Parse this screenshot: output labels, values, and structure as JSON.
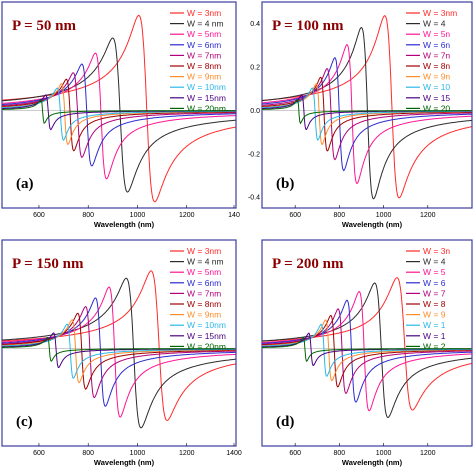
{
  "colors": {
    "frame": "#3c3ca0",
    "series": [
      "#ff2a2a",
      "#2b2b2b",
      "#ff1493",
      "#2a2ad0",
      "#b0007a",
      "#a00000",
      "#ff8c2a",
      "#2ab8e8",
      "#4b0082",
      "#006400",
      "#32cd32"
    ]
  },
  "chart_data": [
    {
      "type": "line",
      "title": "P = 50 nm",
      "panel_label": "(a)",
      "xlabel": "Wavelength (nm)",
      "xlim": [
        450,
        1400
      ],
      "ylim": [
        -0.45,
        0.5
      ],
      "x_ticks": [
        "600",
        "800",
        "1000",
        "1200",
        "140"
      ],
      "y_ticks": [],
      "legend_entries": [
        "W = 3nm",
        "W = 4 nm",
        "W = 5nm",
        "W = 6nm",
        "W = 7nm",
        "W = 8nm",
        "W = 9nm",
        "W = 10nm",
        "W = 15nm",
        "W = 20nm"
      ],
      "series": [
        {
          "name": "W = 3nm",
          "peak_x": 1005,
          "peak_y": 0.44,
          "trough_x": 1070,
          "trough_y": -0.42
        },
        {
          "name": "W = 4 nm",
          "peak_x": 900,
          "peak_y": 0.33,
          "trough_x": 960,
          "trough_y": -0.38
        },
        {
          "name": "W = 5nm",
          "peak_x": 830,
          "peak_y": 0.26,
          "trough_x": 875,
          "trough_y": -0.32
        },
        {
          "name": "W = 6nm",
          "peak_x": 775,
          "peak_y": 0.21,
          "trough_x": 815,
          "trough_y": -0.26
        },
        {
          "name": "W = 7nm",
          "peak_x": 740,
          "peak_y": 0.17,
          "trough_x": 775,
          "trough_y": -0.22
        },
        {
          "name": "W = 8nm",
          "peak_x": 712,
          "peak_y": 0.14,
          "trough_x": 742,
          "trough_y": -0.19
        },
        {
          "name": "W = 9nm",
          "peak_x": 692,
          "peak_y": 0.12,
          "trough_x": 718,
          "trough_y": -0.16
        },
        {
          "name": "W = 10nm",
          "peak_x": 675,
          "peak_y": 0.1,
          "trough_x": 700,
          "trough_y": -0.14
        },
        {
          "name": "W = 15nm",
          "peak_x": 628,
          "peak_y": 0.07,
          "trough_x": 648,
          "trough_y": -0.09
        },
        {
          "name": "W = 20nm",
          "peak_x": 608,
          "peak_y": 0.05,
          "trough_x": 622,
          "trough_y": -0.06
        }
      ]
    },
    {
      "type": "line",
      "title": "P = 100 nm",
      "panel_label": "(b)",
      "xlabel": "Wavelength (nm)",
      "xlim": [
        450,
        1400
      ],
      "ylim": [
        -0.45,
        0.5
      ],
      "x_ticks": [
        "600",
        "800",
        "1000",
        "1200"
      ],
      "y_ticks": [
        "0.4",
        "0.2",
        "0.0",
        "-0.2",
        "-0.4"
      ],
      "legend_entries": [
        "W = 3nm",
        "W = 4",
        "W = 5n",
        "W = 6n",
        "W = 7n",
        "W = 8n",
        "W = 9n",
        "W = 10",
        "W = 15",
        "W = 20"
      ],
      "series": [
        {
          "name": "W = 3nm",
          "peak_x": 1005,
          "peak_y": 0.44,
          "trough_x": 1070,
          "trough_y": -0.4
        },
        {
          "name": "W = 4",
          "peak_x": 900,
          "peak_y": 0.38,
          "trough_x": 955,
          "trough_y": -0.41
        },
        {
          "name": "W = 5n",
          "peak_x": 835,
          "peak_y": 0.3,
          "trough_x": 880,
          "trough_y": -0.34
        },
        {
          "name": "W = 6n",
          "peak_x": 780,
          "peak_y": 0.24,
          "trough_x": 820,
          "trough_y": -0.28
        },
        {
          "name": "W = 7n",
          "peak_x": 745,
          "peak_y": 0.19,
          "trough_x": 780,
          "trough_y": -0.23
        },
        {
          "name": "W = 8n",
          "peak_x": 716,
          "peak_y": 0.15,
          "trough_x": 746,
          "trough_y": -0.19
        },
        {
          "name": "W = 9n",
          "peak_x": 696,
          "peak_y": 0.12,
          "trough_x": 722,
          "trough_y": -0.16
        },
        {
          "name": "W = 10",
          "peak_x": 678,
          "peak_y": 0.1,
          "trough_x": 703,
          "trough_y": -0.14
        },
        {
          "name": "W = 15",
          "peak_x": 630,
          "peak_y": 0.07,
          "trough_x": 650,
          "trough_y": -0.09
        },
        {
          "name": "W = 20",
          "peak_x": 610,
          "peak_y": 0.05,
          "trough_x": 624,
          "trough_y": -0.06
        }
      ]
    },
    {
      "type": "line",
      "title": "P = 150 nm",
      "panel_label": "(c)",
      "xlabel": "Wavelength (nm)",
      "xlim": [
        450,
        1400
      ],
      "ylim": [
        -0.45,
        0.5
      ],
      "x_ticks": [
        "600",
        "800",
        "1000",
        "1200",
        "1400"
      ],
      "y_ticks": [],
      "legend_entries": [
        "W = 3nm",
        "W = 4 nm",
        "W = 5nm",
        "W = 6nm",
        "W = 7nm",
        "W = 8nm",
        "W = 9nm",
        "W = 10nm",
        "W = 15nm",
        "W = 20nm"
      ],
      "series": [
        {
          "name": "W = 3nm",
          "peak_x": 1055,
          "peak_y": 0.36,
          "trough_x": 1120,
          "trough_y": -0.33
        },
        {
          "name": "W = 4 nm",
          "peak_x": 955,
          "peak_y": 0.32,
          "trough_x": 1015,
          "trough_y": -0.37
        },
        {
          "name": "W = 5nm",
          "peak_x": 885,
          "peak_y": 0.28,
          "trough_x": 930,
          "trough_y": -0.32
        },
        {
          "name": "W = 6nm",
          "peak_x": 830,
          "peak_y": 0.23,
          "trough_x": 870,
          "trough_y": -0.27
        },
        {
          "name": "W = 7nm",
          "peak_x": 790,
          "peak_y": 0.19,
          "trough_x": 825,
          "trough_y": -0.23
        },
        {
          "name": "W = 8nm",
          "peak_x": 758,
          "peak_y": 0.16,
          "trough_x": 790,
          "trough_y": -0.19
        },
        {
          "name": "W = 9nm",
          "peak_x": 735,
          "peak_y": 0.13,
          "trough_x": 763,
          "trough_y": -0.16
        },
        {
          "name": "W = 10nm",
          "peak_x": 715,
          "peak_y": 0.11,
          "trough_x": 740,
          "trough_y": -0.14
        },
        {
          "name": "W = 15nm",
          "peak_x": 660,
          "peak_y": 0.07,
          "trough_x": 680,
          "trough_y": -0.09
        },
        {
          "name": "W = 20nm",
          "peak_x": 635,
          "peak_y": 0.05,
          "trough_x": 650,
          "trough_y": -0.06
        }
      ]
    },
    {
      "type": "line",
      "title": "P = 200 nm",
      "panel_label": "(d)",
      "xlabel": "Wavelength (nm)",
      "xlim": [
        450,
        1400
      ],
      "ylim": [
        -0.45,
        0.5
      ],
      "x_ticks": [
        "600",
        "800",
        "1000",
        "1200"
      ],
      "y_ticks": [],
      "legend_entries": [
        "W = 3n",
        "W = 4",
        "W = 5",
        "W = 6",
        "W = 7",
        "W = 8",
        "W = 9",
        "W = 1",
        "W = 1",
        "W = 2"
      ],
      "series": [
        {
          "name": "W = 3n",
          "peak_x": 1060,
          "peak_y": 0.33,
          "trough_x": 1130,
          "trough_y": -0.28
        },
        {
          "name": "W = 4",
          "peak_x": 960,
          "peak_y": 0.3,
          "trough_x": 1020,
          "trough_y": -0.32
        },
        {
          "name": "W = 5",
          "peak_x": 890,
          "peak_y": 0.26,
          "trough_x": 935,
          "trough_y": -0.29
        },
        {
          "name": "W = 6",
          "peak_x": 835,
          "peak_y": 0.22,
          "trough_x": 875,
          "trough_y": -0.25
        },
        {
          "name": "W = 7",
          "peak_x": 795,
          "peak_y": 0.18,
          "trough_x": 830,
          "trough_y": -0.21
        },
        {
          "name": "W = 8",
          "peak_x": 762,
          "peak_y": 0.15,
          "trough_x": 793,
          "trough_y": -0.18
        },
        {
          "name": "W = 9",
          "peak_x": 738,
          "peak_y": 0.13,
          "trough_x": 766,
          "trough_y": -0.15
        },
        {
          "name": "W = 1",
          "peak_x": 718,
          "peak_y": 0.11,
          "trough_x": 743,
          "trough_y": -0.13
        },
        {
          "name": "W = 1",
          "peak_x": 662,
          "peak_y": 0.07,
          "trough_x": 682,
          "trough_y": -0.08
        },
        {
          "name": "W = 2",
          "peak_x": 637,
          "peak_y": 0.05,
          "trough_x": 652,
          "trough_y": -0.06
        }
      ]
    }
  ]
}
